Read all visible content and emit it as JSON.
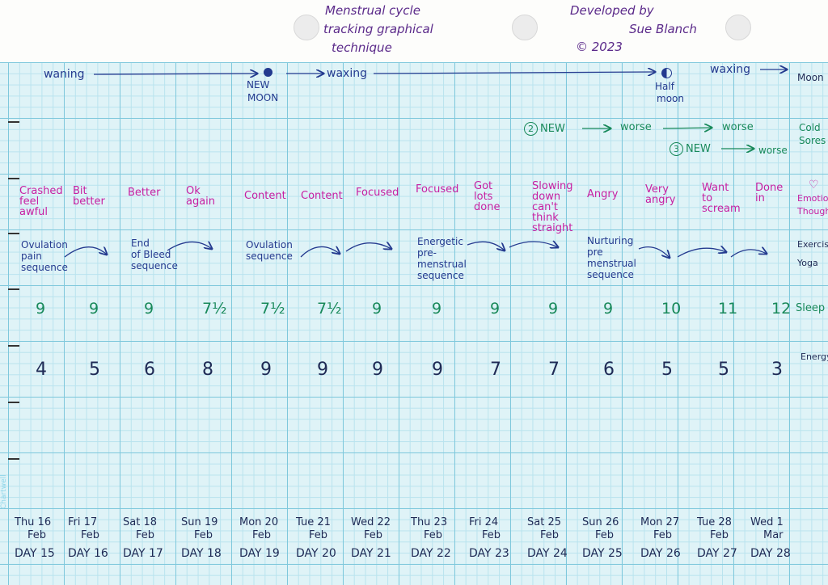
{
  "header": {
    "title_lines": [
      "Menstrual cycle",
      "tracking graphical",
      "technique"
    ],
    "author_lines": [
      "Developed by",
      "Sue Blanch",
      "© 2023"
    ]
  },
  "rows": {
    "moon": {
      "label": "Moon",
      "waning": "waning",
      "new_moon_line1": "NEW",
      "new_moon_line2": "MOON",
      "waxing1": "waxing",
      "half_moon_line1": "Half",
      "half_moon_line2": "moon",
      "waxing2": "waxing"
    },
    "cold_sores": {
      "label_line1": "Cold",
      "label_line2": "Sores",
      "row1": {
        "circle": "2",
        "new": "NEW",
        "worse1": "worse",
        "worse2": "worse"
      },
      "row2": {
        "circle": "3",
        "new": "NEW",
        "worse": "worse"
      }
    },
    "emotions": {
      "label_line1": "Emotio",
      "label_line2": "Thoughts",
      "heart": "♡",
      "entries": [
        [
          "Crashed",
          "feel",
          "awful"
        ],
        [
          "Bit",
          "better"
        ],
        [
          "Better"
        ],
        [
          "Ok",
          "again"
        ],
        [
          "Content"
        ],
        [
          "Content"
        ],
        [
          "Focused"
        ],
        [
          "Focused"
        ],
        [
          "Got",
          "lots",
          "done"
        ],
        [
          "Slowing",
          "down",
          "can't",
          "think",
          "straight"
        ],
        [
          "Angry"
        ],
        [
          "Very",
          "angry"
        ],
        [
          "Want",
          "to",
          "scream"
        ],
        [
          "Done",
          "in"
        ]
      ]
    },
    "exercise": {
      "label_line1": "Exercise",
      "label_line2": "Yoga",
      "sequences": [
        [
          "Ovulation",
          "pain",
          "sequence"
        ],
        [
          "End",
          "of Bleed",
          "sequence"
        ],
        [
          "Ovulation",
          "sequence"
        ],
        [
          "Energetic",
          "pre-",
          "menstrual",
          "sequence"
        ],
        [
          "Nurturing",
          "pre",
          "menstrual",
          "sequence"
        ]
      ]
    },
    "sleep": {
      "label": "Sleep",
      "values": [
        "9",
        "9",
        "9",
        "7½",
        "7½",
        "7½",
        "9",
        "9",
        "9",
        "9",
        "9",
        "10",
        "11",
        "12"
      ]
    },
    "energy": {
      "label": "Energy",
      "values": [
        4,
        5,
        6,
        8,
        9,
        9,
        9,
        9,
        7,
        7,
        6,
        5,
        5,
        3
      ]
    }
  },
  "days": [
    {
      "date_line1": "Thu 16",
      "date_line2": "Feb",
      "day_label": "DAY 15"
    },
    {
      "date_line1": "Fri 17",
      "date_line2": "Feb",
      "day_label": "DAY 16"
    },
    {
      "date_line1": "Sat 18",
      "date_line2": "Feb",
      "day_label": "DAY 17"
    },
    {
      "date_line1": "Sun 19",
      "date_line2": "Feb",
      "day_label": "DAY 18"
    },
    {
      "date_line1": "Mon 20",
      "date_line2": "Feb",
      "day_label": "DAY 19"
    },
    {
      "date_line1": "Tue 21",
      "date_line2": "Feb",
      "day_label": "DAY 20"
    },
    {
      "date_line1": "Wed 22",
      "date_line2": "Feb",
      "day_label": "DAY 21"
    },
    {
      "date_line1": "Thu 23",
      "date_line2": "Feb",
      "day_label": "DAY 22"
    },
    {
      "date_line1": "Fri 24",
      "date_line2": "Feb",
      "day_label": "DAY 23"
    },
    {
      "date_line1": "Sat 25",
      "date_line2": "Feb",
      "day_label": "DAY 24"
    },
    {
      "date_line1": "Sun 26",
      "date_line2": "Feb",
      "day_label": "DAY 25"
    },
    {
      "date_line1": "Mon 27",
      "date_line2": "Feb",
      "day_label": "DAY 26"
    },
    {
      "date_line1": "Tue 28",
      "date_line2": "Feb",
      "day_label": "DAY 27"
    },
    {
      "date_line1": "Wed 1",
      "date_line2": "Mar",
      "day_label": "DAY 28"
    }
  ],
  "margin_brand": "Chartwell",
  "colors": {
    "grid": "#7fc8dc",
    "navy": "#243a8f",
    "pink": "#c71fa2",
    "green": "#18895a",
    "purple": "#5b2a8a"
  }
}
